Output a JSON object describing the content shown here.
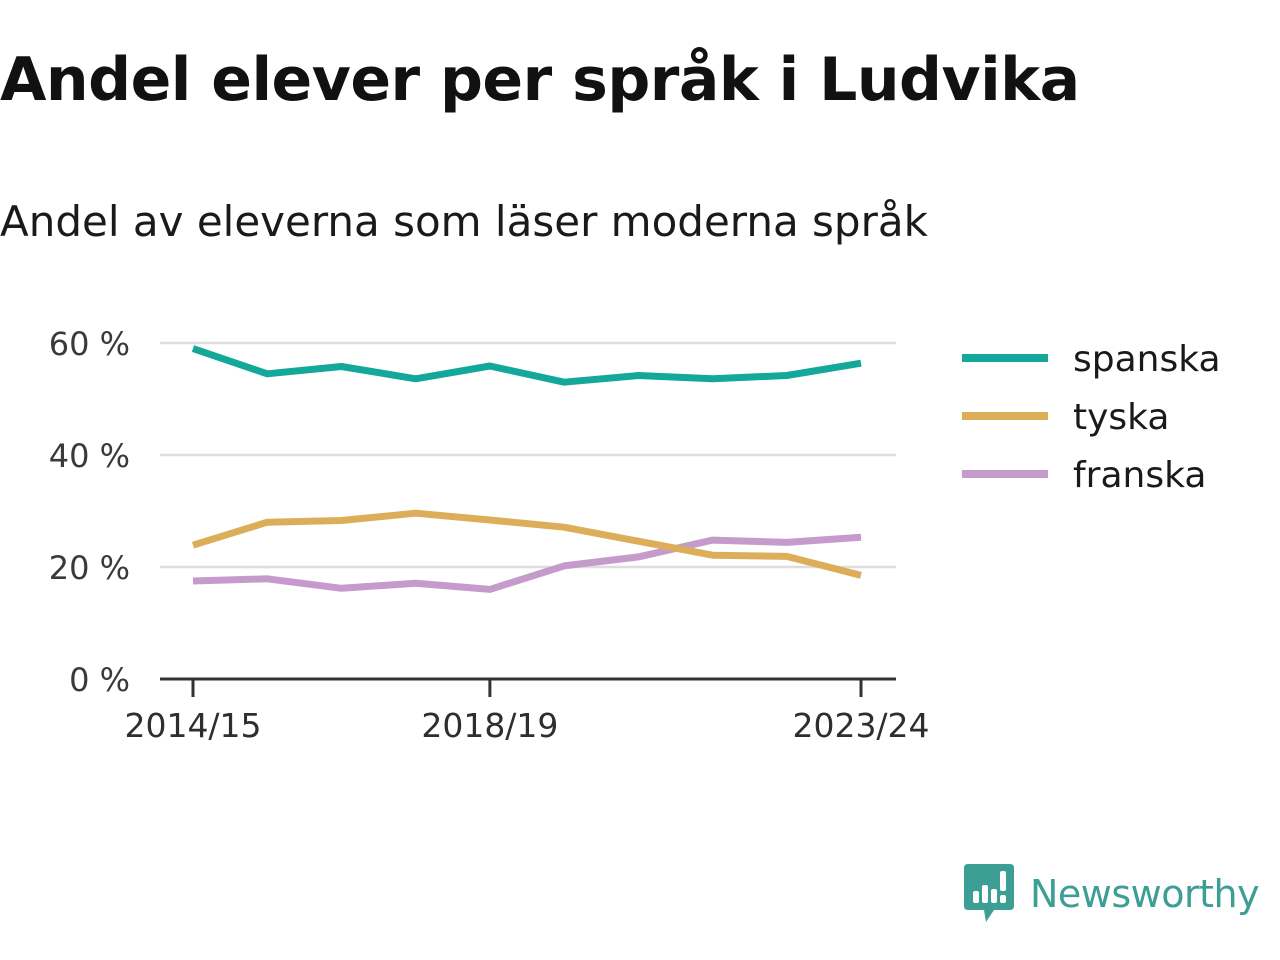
{
  "title": "Andel elever per språk i Ludvika",
  "subtitle": "Andel av eleverna som läser moderna språk",
  "brand": {
    "name": "Newsworthy",
    "color": "#3d9e96",
    "icon": "newsworthy-logo-icon"
  },
  "chart_data": {
    "type": "line",
    "x": [
      "2014/15",
      "2015/16",
      "2016/17",
      "2017/18",
      "2018/19",
      "2019/20",
      "2020/21",
      "2021/22",
      "2022/23",
      "2023/24"
    ],
    "x_tick_labels": [
      "2014/15",
      "2018/19",
      "2023/24"
    ],
    "series": [
      {
        "name": "spanska",
        "color": "#13a89a",
        "values": [
          59.0,
          54.5,
          55.8,
          53.6,
          55.9,
          53.0,
          54.2,
          53.6,
          54.2,
          56.4
        ]
      },
      {
        "name": "tyska",
        "color": "#dcae5a",
        "values": [
          23.9,
          28.0,
          28.3,
          29.6,
          28.4,
          27.1,
          24.6,
          22.1,
          21.9,
          18.5
        ]
      },
      {
        "name": "franska",
        "color": "#c59bcb",
        "values": [
          17.5,
          17.9,
          16.2,
          17.1,
          16.0,
          20.2,
          21.8,
          24.8,
          24.4,
          25.3
        ]
      }
    ],
    "ylim": [
      0,
      60
    ],
    "y_ticks": [
      0,
      20,
      40,
      60
    ],
    "y_tick_labels": [
      "0 %",
      "20 %",
      "40 %",
      "60 %"
    ],
    "xlabel": "",
    "ylabel": "",
    "grid": true,
    "legend": "right"
  }
}
